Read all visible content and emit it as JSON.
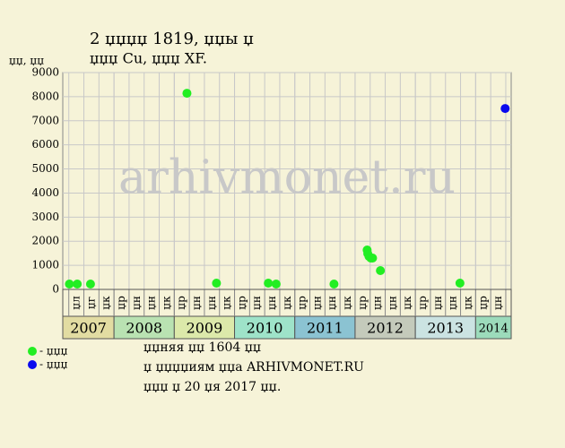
{
  "chart_data": {
    "type": "scatter",
    "title": "2 џџџџ 1819, џџы џ",
    "subtitle": "џџџ Cu, џџџ XF.",
    "y_label": "џџ, џџ",
    "watermark": "arhivmonet.ru",
    "xlim": [
      2007.15,
      2014.59
    ],
    "ylim": [
      0,
      9000
    ],
    "yticks": [
      0,
      1000,
      2000,
      3000,
      4000,
      5000,
      6000,
      7000,
      8000,
      9000
    ],
    "grid": true,
    "years": [
      "2007",
      "2008",
      "2009",
      "2010",
      "2011",
      "2012",
      "2013",
      "2014"
    ],
    "year_colors": [
      "#e2dca2",
      "#b9e2b2",
      "#dce9aa",
      "#9ee3c9",
      "#8bc3d2",
      "#c4cabb",
      "#cbe3e2",
      "#9cdbbb"
    ],
    "period_labels": [
      [
        "џл",
        "џг",
        "џк"
      ],
      [
        "џр",
        "џн",
        "џн",
        "џк"
      ],
      [
        "џр",
        "џн",
        "џн",
        "џк"
      ],
      [
        "џр",
        "џн",
        "џн",
        "џк"
      ],
      [
        "џр",
        "џн",
        "џн",
        "џк"
      ],
      [
        "џр",
        "џн",
        "џн",
        "џк"
      ],
      [
        "џр",
        "џн",
        "џн",
        "џк"
      ],
      [
        "џр",
        "џн"
      ]
    ],
    "series": [
      {
        "name": "- џџџ",
        "color": "#22ee22",
        "x": [
          2007.26,
          2007.39,
          2007.61,
          2009.21,
          2009.7,
          2010.56,
          2010.69,
          2011.65,
          2012.2,
          2012.21,
          2012.23,
          2012.26,
          2012.29,
          2012.42,
          2013.74
        ],
        "values": [
          223,
          223,
          223,
          8141,
          260,
          260,
          223,
          223,
          1636,
          1487,
          1375,
          1301,
          1301,
          781,
          260
        ]
      },
      {
        "name": "- џџџ",
        "color": "#0a0aee",
        "x": [
          2014.49
        ],
        "values": [
          7509
        ]
      }
    ],
    "notes": [
      "џџняя џџ 1604 џџ",
      "џ џџџџиям џџа ARHIVMONET.RU",
      "џџџ џ 20 џя 2017 џџ."
    ]
  }
}
